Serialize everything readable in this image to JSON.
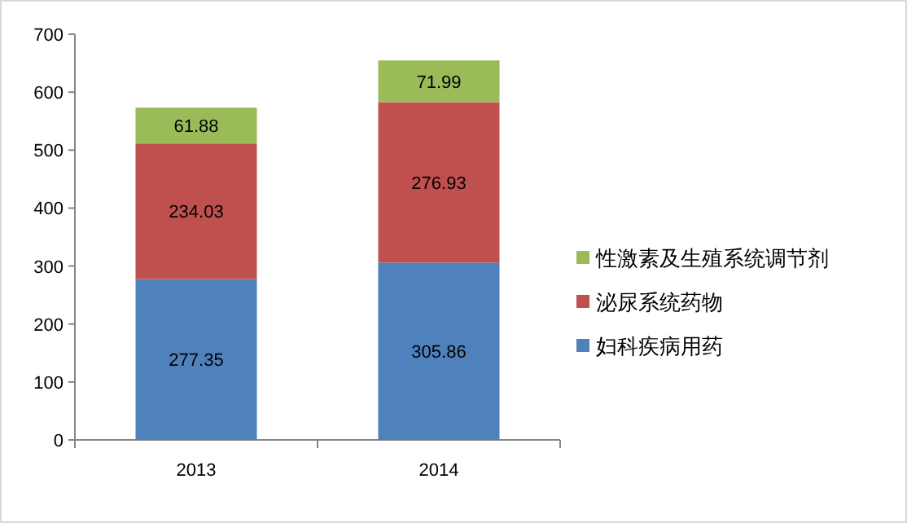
{
  "chart_data": {
    "type": "bar",
    "stacked": true,
    "categories": [
      "2013",
      "2014"
    ],
    "series": [
      {
        "name": "妇科疾病用药",
        "color": "#4f81bd",
        "values": [
          277.35,
          305.86
        ]
      },
      {
        "name": "泌尿系统药物",
        "color": "#c0504d",
        "values": [
          234.03,
          276.93
        ]
      },
      {
        "name": "性激素及生殖系统调节剂",
        "color": "#9bbb59",
        "values": [
          61.88,
          71.99
        ]
      }
    ],
    "ylim": [
      0,
      700
    ],
    "yticks": [
      0,
      100,
      200,
      300,
      400,
      500,
      600,
      700
    ],
    "data_labels": true,
    "legend": "right"
  }
}
